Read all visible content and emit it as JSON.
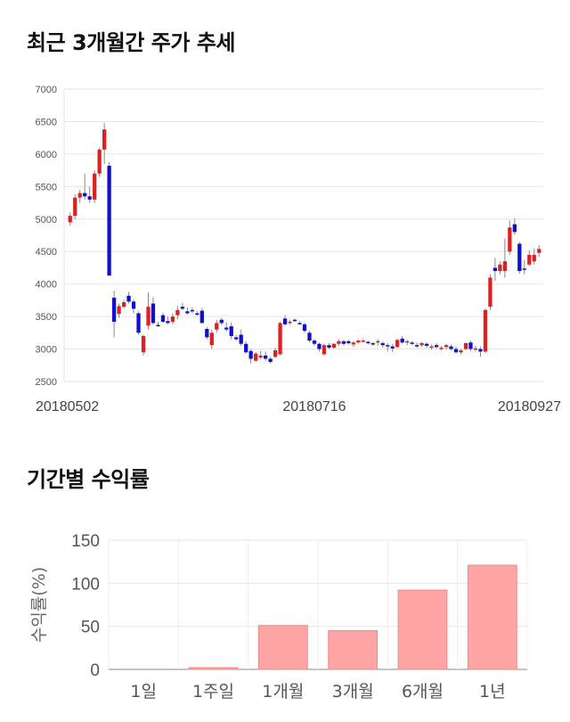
{
  "sections": {
    "price_title": "최근 3개월간 주가 추세",
    "return_title": "기간별 수익률"
  },
  "chart_data": [
    {
      "type": "candlestick",
      "title": "최근 3개월간 주가 추세",
      "y_ticks": [
        2500,
        3000,
        3500,
        4000,
        4500,
        5000,
        5500,
        6000,
        6500,
        7000
      ],
      "ylim": [
        2500,
        7000
      ],
      "x_tick_labels": [
        {
          "index": 0,
          "label": "20180502"
        },
        {
          "index": 50,
          "label": "20180716"
        },
        {
          "index": 96,
          "label": "20180927"
        }
      ],
      "grid": true,
      "colors": {
        "up": "#e02020",
        "down": "#1010cc"
      },
      "candles": [
        [
          4950,
          5100,
          4900,
          5050
        ],
        [
          5050,
          5380,
          5000,
          5330
        ],
        [
          5330,
          5450,
          5250,
          5400
        ],
        [
          5400,
          5700,
          5300,
          5350
        ],
        [
          5350,
          5500,
          5250,
          5300
        ],
        [
          5300,
          5750,
          5250,
          5700
        ],
        [
          5700,
          6100,
          5650,
          6070
        ],
        [
          6070,
          6480,
          5850,
          6380
        ],
        [
          5820,
          5880,
          4130,
          4130
        ],
        [
          3790,
          3900,
          3180,
          3420
        ],
        [
          3540,
          3700,
          3480,
          3660
        ],
        [
          3650,
          3760,
          3620,
          3720
        ],
        [
          3820,
          3880,
          3700,
          3730
        ],
        [
          3730,
          3760,
          3550,
          3620
        ],
        [
          3550,
          3580,
          3220,
          3250
        ],
        [
          2950,
          3220,
          2900,
          3200
        ],
        [
          3360,
          3870,
          3300,
          3650
        ],
        [
          3700,
          3800,
          3380,
          3400
        ],
        [
          3370,
          3420,
          3340,
          3350
        ],
        [
          3520,
          3560,
          3400,
          3420
        ],
        [
          3430,
          3500,
          3380,
          3400
        ],
        [
          3420,
          3550,
          3380,
          3500
        ],
        [
          3520,
          3660,
          3460,
          3600
        ],
        [
          3650,
          3710,
          3600,
          3620
        ],
        [
          3580,
          3640,
          3530,
          3550
        ],
        [
          3600,
          3640,
          3550,
          3580
        ],
        [
          3550,
          3580,
          3510,
          3540
        ],
        [
          3590,
          3630,
          3400,
          3400
        ],
        [
          3310,
          3340,
          3150,
          3180
        ],
        [
          3060,
          3300,
          3000,
          3250
        ],
        [
          3300,
          3450,
          3250,
          3400
        ],
        [
          3450,
          3480,
          3370,
          3400
        ],
        [
          3330,
          3410,
          3270,
          3300
        ],
        [
          3350,
          3410,
          3150,
          3200
        ],
        [
          3180,
          3220,
          3130,
          3150
        ],
        [
          3220,
          3300,
          3050,
          3080
        ],
        [
          3080,
          3120,
          2930,
          2950
        ],
        [
          2970,
          3000,
          2780,
          2850
        ],
        [
          2820,
          2950,
          2800,
          2930
        ],
        [
          2870,
          2970,
          2840,
          2900
        ],
        [
          2900,
          2960,
          2820,
          2850
        ],
        [
          2850,
          2880,
          2780,
          2800
        ],
        [
          2880,
          3020,
          2860,
          2980
        ],
        [
          2920,
          3420,
          2900,
          3400
        ],
        [
          3470,
          3520,
          3360,
          3380
        ],
        [
          3400,
          3450,
          3370,
          3420
        ],
        [
          3450,
          3470,
          3420,
          3440
        ],
        [
          3400,
          3430,
          3380,
          3390
        ],
        [
          3380,
          3410,
          3250,
          3280
        ],
        [
          3250,
          3280,
          3100,
          3130
        ],
        [
          3130,
          3150,
          3050,
          3080
        ],
        [
          3080,
          3100,
          2960,
          3000
        ],
        [
          2920,
          3080,
          2900,
          3060
        ],
        [
          3060,
          3090,
          3000,
          3020
        ],
        [
          3020,
          3090,
          3000,
          3080
        ],
        [
          3080,
          3150,
          3050,
          3120
        ],
        [
          3120,
          3140,
          3050,
          3080
        ],
        [
          3120,
          3140,
          3070,
          3090
        ],
        [
          3070,
          3120,
          3030,
          3100
        ],
        [
          3100,
          3150,
          3080,
          3130
        ],
        [
          3120,
          3160,
          3100,
          3130
        ],
        [
          3110,
          3130,
          3070,
          3090
        ],
        [
          3090,
          3110,
          3050,
          3070
        ],
        [
          3100,
          3150,
          3050,
          3120
        ],
        [
          3090,
          3120,
          3020,
          3060
        ],
        [
          3060,
          3090,
          2960,
          3040
        ],
        [
          3040,
          3080,
          2950,
          3010
        ],
        [
          3030,
          3160,
          3020,
          3140
        ],
        [
          3160,
          3200,
          3080,
          3100
        ],
        [
          3100,
          3140,
          3060,
          3120
        ],
        [
          3100,
          3120,
          3060,
          3080
        ],
        [
          3060,
          3100,
          3020,
          3040
        ],
        [
          3060,
          3110,
          3030,
          3090
        ],
        [
          3080,
          3100,
          3020,
          3050
        ],
        [
          3020,
          3070,
          2990,
          3040
        ],
        [
          3060,
          3090,
          3010,
          3030
        ],
        [
          3010,
          3050,
          2980,
          3020
        ],
        [
          3030,
          3080,
          2990,
          3060
        ],
        [
          3040,
          3070,
          2980,
          3000
        ],
        [
          3000,
          3040,
          2930,
          2950
        ],
        [
          2950,
          3000,
          2920,
          2980
        ],
        [
          3000,
          3100,
          2980,
          3090
        ],
        [
          3100,
          3130,
          2970,
          3000
        ],
        [
          3000,
          3050,
          2960,
          3010
        ],
        [
          3000,
          3040,
          2880,
          2960
        ],
        [
          2960,
          3620,
          2940,
          3600
        ],
        [
          3650,
          4150,
          3600,
          4100
        ],
        [
          4250,
          4400,
          4050,
          4200
        ],
        [
          4200,
          4350,
          4150,
          4300
        ],
        [
          4200,
          4700,
          4100,
          4350
        ],
        [
          4500,
          4980,
          4450,
          4870
        ],
        [
          4920,
          5010,
          4760,
          4800
        ],
        [
          4620,
          4650,
          4160,
          4200
        ],
        [
          4240,
          4370,
          4150,
          4220
        ],
        [
          4300,
          4520,
          4280,
          4450
        ],
        [
          4350,
          4550,
          4300,
          4450
        ],
        [
          4480,
          4600,
          4420,
          4540
        ]
      ]
    },
    {
      "type": "bar",
      "title": "기간별 수익률",
      "categories": [
        "1일",
        "1주일",
        "1개월",
        "3개월",
        "6개월",
        "1년"
      ],
      "values": [
        0,
        2,
        51,
        45,
        92,
        121
      ],
      "ylabel": "수익률(%)",
      "ylim": [
        0,
        150
      ],
      "y_ticks": [
        0,
        50,
        100,
        150
      ],
      "grid": true,
      "colors": {
        "bar_fill": "#ffa5a5",
        "bar_stroke": "#f08888"
      }
    }
  ]
}
